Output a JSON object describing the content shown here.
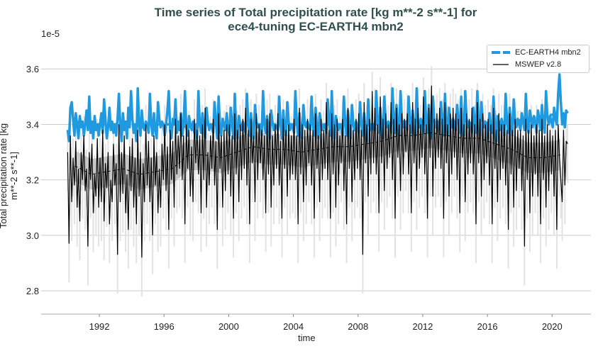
{
  "chart_data": {
    "type": "line",
    "title": "Time series of Total precipitation rate [kg m**-2 s**-1] for",
    "subtitle": "ece4-tuning EC-EARTH4 mbn2",
    "offset_label": "1e-5",
    "xlabel": "time",
    "ylabel_line1": "Total precipitation rate [kg",
    "ylabel_line2": "m**-2 s**-1]",
    "xlim": [
      1988.4,
      2022.4
    ],
    "ylim": [
      2.716,
      3.69
    ],
    "x_ticks": [
      "1992",
      "1996",
      "2000",
      "2004",
      "2008",
      "2012",
      "2016",
      "2020"
    ],
    "y_ticks": [
      "2.8",
      "3.0",
      "3.2",
      "3.4",
      "3.6"
    ],
    "grid": "horizontal",
    "legend_position": "top-right",
    "start_year": 1990,
    "series": [
      {
        "name": "EC-EARTH4 mbn2",
        "color": "#1f9ae0",
        "monthly": [
          [
            3.38,
            3.34,
            3.46,
            3.48,
            3.42,
            3.36,
            3.44,
            3.4,
            3.35,
            3.43,
            3.39,
            3.41
          ],
          [
            3.36,
            3.4,
            3.45,
            3.38,
            3.5,
            3.37,
            3.41,
            3.35,
            3.43,
            3.38,
            3.4,
            3.36
          ],
          [
            3.4,
            3.44,
            3.37,
            3.49,
            3.42,
            3.35,
            3.39,
            3.46,
            3.38,
            3.41,
            3.37,
            3.4
          ],
          [
            3.36,
            3.42,
            3.51,
            3.4,
            3.34,
            3.44,
            3.38,
            3.41,
            3.35,
            3.46,
            3.39,
            3.52
          ],
          [
            3.42,
            3.37,
            3.4,
            3.34,
            3.53,
            3.4,
            3.36,
            3.45,
            3.39,
            3.38,
            3.41,
            3.4
          ],
          [
            3.37,
            3.51,
            3.4,
            3.36,
            3.44,
            3.38,
            3.35,
            3.48,
            3.42,
            3.39,
            3.41,
            3.4
          ],
          [
            3.36,
            3.4,
            3.45,
            3.52,
            3.38,
            3.35,
            3.42,
            3.4,
            3.49,
            3.37,
            3.41,
            3.38
          ],
          [
            3.44,
            3.36,
            3.4,
            3.52,
            3.39,
            3.36,
            3.43,
            3.4,
            3.38,
            3.41,
            3.37,
            3.4
          ],
          [
            3.35,
            3.52,
            3.4,
            3.37,
            3.44,
            3.39,
            3.35,
            3.46,
            3.41,
            3.38,
            3.4,
            3.39
          ],
          [
            3.37,
            3.48,
            3.41,
            3.35,
            3.5,
            3.39,
            3.36,
            3.42,
            3.4,
            3.38,
            3.44,
            3.39
          ],
          [
            3.36,
            3.46,
            3.4,
            3.35,
            3.51,
            3.38,
            3.35,
            3.43,
            3.4,
            3.38,
            3.41,
            3.39
          ],
          [
            3.37,
            3.51,
            3.4,
            3.36,
            3.44,
            3.38,
            3.35,
            3.47,
            3.41,
            3.39,
            3.4,
            3.39
          ],
          [
            3.36,
            3.52,
            3.4,
            3.37,
            3.43,
            3.39,
            3.35,
            3.45,
            3.41,
            3.38,
            3.4,
            3.39
          ],
          [
            3.38,
            3.5,
            3.4,
            3.35,
            3.45,
            3.39,
            3.36,
            3.48,
            3.41,
            3.38,
            3.4,
            3.39
          ],
          [
            3.37,
            3.52,
            3.41,
            3.36,
            3.44,
            3.38,
            3.35,
            3.47,
            3.4,
            3.39,
            3.41,
            3.39
          ],
          [
            3.38,
            3.5,
            3.4,
            3.36,
            3.46,
            3.39,
            3.35,
            3.44,
            3.41,
            3.38,
            3.4,
            3.39
          ],
          [
            3.37,
            3.49,
            3.41,
            3.36,
            3.52,
            3.39,
            3.35,
            3.43,
            3.4,
            3.38,
            3.4,
            3.39
          ],
          [
            3.36,
            3.5,
            3.4,
            3.36,
            3.45,
            3.39,
            3.35,
            3.47,
            3.4,
            3.38,
            3.41,
            3.39
          ],
          [
            3.37,
            3.48,
            3.4,
            3.36,
            3.44,
            3.38,
            3.34,
            3.49,
            3.4,
            3.38,
            3.4,
            3.39
          ],
          [
            3.38,
            3.52,
            3.41,
            3.37,
            3.46,
            3.39,
            3.35,
            3.5,
            3.41,
            3.39,
            3.41,
            3.4
          ],
          [
            3.37,
            3.53,
            3.42,
            3.37,
            3.47,
            3.39,
            3.36,
            3.52,
            3.42,
            3.39,
            3.41,
            3.4
          ],
          [
            3.38,
            3.5,
            3.41,
            3.37,
            3.45,
            3.39,
            3.36,
            3.53,
            3.41,
            3.39,
            3.42,
            3.4
          ],
          [
            3.37,
            3.52,
            3.41,
            3.37,
            3.47,
            3.39,
            3.35,
            3.5,
            3.42,
            3.39,
            3.41,
            3.4
          ],
          [
            3.37,
            3.48,
            3.41,
            3.36,
            3.51,
            3.4,
            3.36,
            3.46,
            3.41,
            3.39,
            3.42,
            3.4
          ],
          [
            3.38,
            3.47,
            3.41,
            3.37,
            3.5,
            3.39,
            3.36,
            3.52,
            3.42,
            3.39,
            3.41,
            3.4
          ],
          [
            3.37,
            3.46,
            3.41,
            3.37,
            3.52,
            3.4,
            3.36,
            3.48,
            3.42,
            3.39,
            3.41,
            3.4
          ],
          [
            3.35,
            3.44,
            3.38,
            3.37,
            3.5,
            3.4,
            3.34,
            3.43,
            3.41,
            3.38,
            3.42,
            3.4
          ],
          [
            3.36,
            3.51,
            3.41,
            3.37,
            3.46,
            3.4,
            3.36,
            3.49,
            3.41,
            3.39,
            3.42,
            3.4
          ],
          [
            3.38,
            3.44,
            3.41,
            3.38,
            3.51,
            3.4,
            3.37,
            3.45,
            3.42,
            3.39,
            3.43,
            3.41
          ],
          [
            3.37,
            3.45,
            3.42,
            3.38,
            3.47,
            3.4,
            3.37,
            3.52,
            3.43,
            3.4,
            3.43,
            3.41
          ],
          [
            3.39,
            3.46,
            3.42,
            3.4,
            3.51,
            3.58,
            3.48,
            3.4,
            3.44,
            3.39,
            3.45,
            3.44
          ]
        ],
        "running_mean": [
          3.41,
          3.4,
          3.4,
          3.4,
          3.4,
          3.4,
          3.4,
          3.39,
          3.4,
          3.4,
          3.4,
          3.4,
          3.4,
          3.4,
          3.4,
          3.4,
          3.4,
          3.4,
          3.4,
          3.4,
          3.41,
          3.41,
          3.41,
          3.41,
          3.41,
          3.41,
          3.4,
          3.41,
          3.42,
          3.43,
          3.44
        ]
      },
      {
        "name": "MSWEP v2.8",
        "color": "#000000",
        "monthly": [
          [
            3.3,
            2.97,
            3.36,
            3.12,
            3.28,
            3.18,
            3.34,
            3.1,
            3.24,
            3.05,
            3.3,
            3.2
          ],
          [
            3.36,
            3.16,
            3.24,
            2.96,
            3.3,
            3.2,
            3.33,
            3.08,
            3.22,
            3.14,
            3.35,
            3.1
          ],
          [
            3.28,
            3.12,
            3.38,
            3.05,
            3.26,
            3.17,
            3.3,
            3.04,
            3.2,
            3.12,
            3.33,
            3.18
          ],
          [
            3.26,
            2.93,
            3.4,
            3.12,
            3.3,
            3.15,
            3.36,
            3.08,
            3.22,
            3.02,
            3.32,
            3.16
          ],
          [
            3.35,
            3.1,
            3.28,
            3.04,
            3.38,
            3.14,
            3.3,
            2.92,
            3.26,
            3.12,
            3.4,
            3.18
          ],
          [
            3.34,
            3.12,
            3.28,
            3.0,
            3.36,
            3.18,
            3.3,
            3.08,
            3.24,
            3.1,
            3.33,
            3.2
          ],
          [
            3.4,
            3.16,
            3.32,
            3.02,
            3.38,
            3.2,
            3.34,
            3.1,
            3.42,
            3.22,
            3.36,
            3.24
          ],
          [
            3.44,
            3.2,
            3.36,
            3.04,
            3.4,
            3.24,
            3.38,
            3.14,
            3.32,
            3.12,
            3.42,
            3.26
          ],
          [
            3.38,
            3.22,
            3.36,
            3.08,
            3.4,
            3.2,
            3.46,
            3.1,
            3.3,
            3.18,
            3.36,
            3.24
          ],
          [
            3.42,
            3.18,
            3.34,
            3.02,
            3.44,
            3.24,
            3.36,
            3.1,
            3.38,
            3.16,
            3.4,
            3.22
          ],
          [
            3.4,
            3.14,
            3.36,
            3.06,
            3.44,
            3.22,
            3.38,
            3.12,
            3.4,
            3.2,
            3.42,
            3.24
          ],
          [
            3.46,
            3.18,
            3.38,
            3.04,
            3.42,
            3.26,
            3.36,
            3.12,
            3.44,
            3.2,
            3.4,
            3.26
          ],
          [
            3.38,
            3.2,
            3.36,
            3.08,
            3.42,
            3.22,
            3.44,
            3.1,
            3.36,
            3.18,
            3.4,
            3.24
          ],
          [
            3.44,
            3.18,
            3.34,
            3.06,
            3.42,
            3.24,
            3.38,
            3.14,
            3.4,
            3.2,
            3.36,
            3.22
          ],
          [
            3.42,
            3.2,
            3.36,
            3.04,
            3.46,
            3.22,
            3.4,
            3.12,
            3.38,
            3.18,
            3.42,
            3.26
          ],
          [
            3.4,
            3.18,
            3.38,
            3.06,
            3.44,
            3.24,
            3.36,
            3.12,
            3.42,
            3.2,
            3.38,
            3.24
          ],
          [
            3.48,
            3.2,
            3.38,
            3.06,
            3.44,
            3.22,
            3.4,
            3.1,
            3.42,
            3.18,
            3.36,
            3.26
          ],
          [
            3.42,
            3.16,
            3.36,
            3.04,
            3.46,
            3.24,
            3.4,
            3.12,
            3.38,
            3.2,
            3.42,
            3.24
          ],
          [
            3.44,
            3.2,
            3.38,
            2.93,
            3.48,
            3.26,
            3.4,
            3.14,
            3.42,
            3.22,
            3.52,
            3.26
          ],
          [
            3.46,
            3.22,
            3.4,
            3.08,
            3.5,
            3.26,
            3.42,
            3.16,
            3.44,
            3.24,
            3.4,
            3.28
          ],
          [
            3.48,
            3.2,
            3.42,
            3.06,
            3.46,
            3.28,
            3.4,
            3.16,
            3.44,
            3.22,
            3.42,
            3.3
          ],
          [
            3.44,
            3.22,
            3.4,
            3.08,
            3.48,
            3.26,
            3.42,
            3.16,
            3.46,
            3.24,
            3.4,
            3.28
          ],
          [
            3.5,
            3.22,
            3.4,
            3.06,
            3.46,
            3.28,
            3.54,
            3.14,
            3.42,
            3.24,
            3.44,
            3.28
          ],
          [
            3.46,
            3.24,
            3.42,
            3.06,
            3.48,
            3.26,
            3.4,
            3.14,
            3.44,
            3.22,
            3.46,
            3.28
          ],
          [
            3.44,
            3.2,
            3.42,
            3.08,
            3.46,
            3.28,
            3.4,
            3.12,
            3.44,
            3.22,
            3.42,
            3.26
          ],
          [
            3.46,
            3.22,
            3.4,
            3.04,
            3.48,
            3.26,
            3.42,
            3.14,
            3.44,
            3.2,
            3.4,
            3.26
          ],
          [
            3.42,
            3.18,
            3.4,
            3.04,
            3.46,
            3.24,
            3.38,
            3.12,
            3.44,
            3.2,
            3.4,
            3.24
          ],
          [
            3.4,
            3.18,
            3.38,
            3.02,
            3.44,
            3.22,
            3.38,
            3.1,
            3.42,
            3.16,
            3.38,
            3.24
          ],
          [
            3.38,
            3.16,
            3.36,
            2.96,
            3.42,
            3.2,
            3.38,
            3.08,
            3.4,
            3.14,
            3.36,
            3.22
          ],
          [
            3.4,
            3.14,
            3.38,
            3.04,
            3.42,
            3.2,
            3.36,
            3.1,
            3.4,
            3.16,
            3.38,
            3.22
          ],
          [
            3.36,
            3.14,
            3.38,
            3.02,
            3.4,
            3.28,
            3.2,
            3.12,
            3.38,
            3.18,
            3.34,
            3.33
          ]
        ],
        "running_mean": [
          3.25,
          3.22,
          3.23,
          3.24,
          3.22,
          3.23,
          3.24,
          3.29,
          3.29,
          3.28,
          3.3,
          3.32,
          3.31,
          3.31,
          3.3,
          3.31,
          3.32,
          3.32,
          3.33,
          3.34,
          3.36,
          3.36,
          3.37,
          3.36,
          3.35,
          3.35,
          3.33,
          3.31,
          3.28,
          3.28,
          3.29
        ],
        "running_band_halfwidth": 0.055,
        "monthly_spread_halfwidth": 0.07
      }
    ]
  }
}
